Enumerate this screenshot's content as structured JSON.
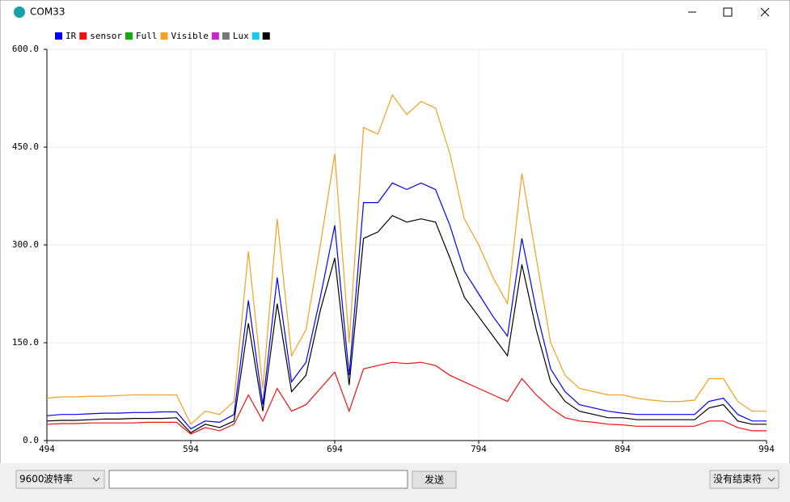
{
  "window": {
    "title": "COM33",
    "baud": "9600",
    "baud_label": "波特率",
    "send": "发送",
    "line_ending": "没有结束符"
  },
  "chart_data": {
    "type": "line",
    "x": [
      494,
      504,
      514,
      524,
      534,
      544,
      554,
      564,
      574,
      584,
      594,
      604,
      614,
      624,
      634,
      644,
      654,
      664,
      674,
      684,
      694,
      704,
      714,
      724,
      734,
      744,
      754,
      764,
      774,
      784,
      794,
      804,
      814,
      824,
      834,
      844,
      854,
      864,
      874,
      884,
      894,
      904,
      914,
      924,
      934,
      944,
      954,
      964,
      974,
      984,
      994
    ],
    "series": [
      {
        "name": "IR",
        "color": "#0000ff",
        "values": [
          38,
          40,
          40,
          41,
          42,
          42,
          43,
          43,
          44,
          44,
          18,
          30,
          28,
          40,
          215,
          55,
          250,
          90,
          120,
          220,
          330,
          100,
          365,
          365,
          395,
          385,
          395,
          385,
          330,
          260,
          225,
          190,
          160,
          310,
          200,
          110,
          75,
          55,
          50,
          45,
          42,
          40,
          40,
          40,
          40,
          40,
          60,
          65,
          40,
          30,
          30
        ]
      },
      {
        "name": "sensor",
        "color": "#ee1111",
        "values": [
          25,
          26,
          26,
          27,
          27,
          27,
          27,
          28,
          28,
          28,
          10,
          20,
          15,
          25,
          70,
          30,
          80,
          45,
          55,
          80,
          105,
          45,
          110,
          115,
          120,
          118,
          120,
          115,
          100,
          90,
          80,
          70,
          60,
          95,
          70,
          50,
          35,
          30,
          28,
          25,
          24,
          22,
          22,
          22,
          22,
          22,
          30,
          30,
          20,
          15,
          15
        ]
      },
      {
        "name": "Full",
        "color": "#11aa11"
      },
      {
        "name": "Visible",
        "color": "#f5a020",
        "values": [
          65,
          67,
          67,
          68,
          68,
          69,
          70,
          70,
          70,
          70,
          25,
          45,
          40,
          60,
          290,
          80,
          340,
          130,
          170,
          300,
          440,
          150,
          480,
          470,
          530,
          500,
          520,
          510,
          440,
          340,
          300,
          250,
          210,
          410,
          280,
          150,
          100,
          80,
          75,
          70,
          70,
          65,
          62,
          60,
          60,
          62,
          95,
          95,
          60,
          45,
          45
        ]
      },
      {
        "color": "#cc22cc"
      },
      {
        "name": "Lux",
        "color": "#777777"
      },
      {
        "color": "#11ccee"
      },
      {
        "color": "#000000",
        "values": [
          30,
          31,
          31,
          32,
          33,
          33,
          34,
          34,
          34,
          35,
          12,
          25,
          20,
          30,
          180,
          45,
          210,
          75,
          100,
          200,
          280,
          85,
          310,
          320,
          345,
          335,
          340,
          335,
          280,
          220,
          190,
          160,
          130,
          270,
          170,
          90,
          60,
          45,
          40,
          35,
          35,
          32,
          32,
          32,
          32,
          32,
          50,
          55,
          30,
          25,
          25
        ]
      }
    ],
    "xlim": [
      494,
      994
    ],
    "xticks": [
      494,
      594,
      694,
      794,
      894,
      994
    ],
    "ylim": [
      0,
      600
    ],
    "yticks": [
      {
        "value": 0,
        "label": "0.0"
      },
      {
        "value": 150,
        "label": "150.0"
      },
      {
        "value": 300,
        "label": "300.0"
      },
      {
        "value": 450,
        "label": "450.0"
      },
      {
        "value": 600,
        "label": "600.0"
      }
    ],
    "grid": true
  }
}
